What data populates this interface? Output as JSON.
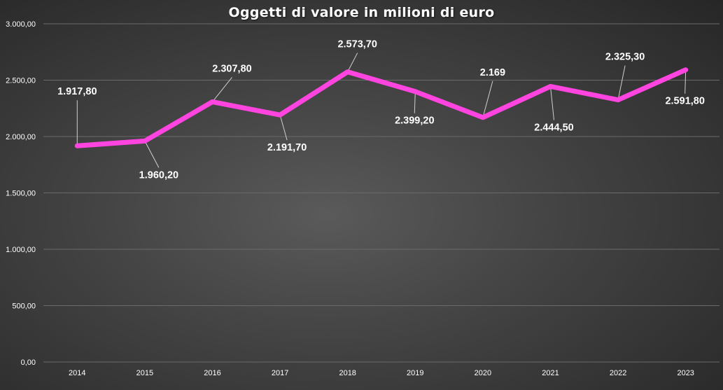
{
  "chart_data": {
    "type": "line",
    "title": "Oggetti di valore  in milioni di euro",
    "xlabel": "",
    "ylabel": "",
    "categories": [
      "2014",
      "2015",
      "2016",
      "2017",
      "2018",
      "2019",
      "2020",
      "2021",
      "2022",
      "2023"
    ],
    "series": [
      {
        "values": [
          1917.8,
          1960.2,
          2307.8,
          2191.7,
          2573.7,
          2399.2,
          2169,
          2444.5,
          2325.3,
          2591.8
        ],
        "labels": [
          "1.917,80",
          "1.960,20",
          "2.307,80",
          "2.191,70",
          "2.573,70",
          "2.399,20",
          "2.169",
          "2.444,50",
          "2.325,30",
          "2.591,80"
        ],
        "color": "#ff44e0"
      }
    ],
    "ylim": [
      0,
      3000
    ],
    "yticks": [
      0,
      500,
      1000,
      1500,
      2000,
      2500,
      3000
    ],
    "ytick_labels": [
      "0,00",
      "500,00",
      "1.000,00",
      "1.500,00",
      "2.000,00",
      "2.500,00",
      "3.000,00"
    ],
    "grid": true,
    "legend": "none",
    "colors": {
      "line": "#ff44e0",
      "grid": "#6a6a6a",
      "text": "#ffffff",
      "leader": "#d0d0d0"
    }
  }
}
